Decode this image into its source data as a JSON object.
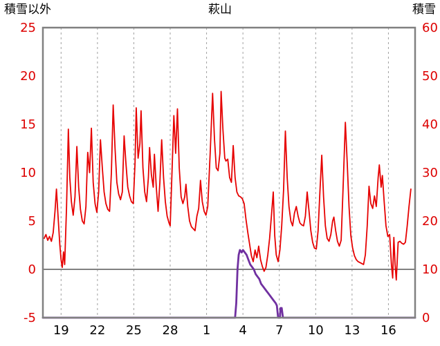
{
  "header": {
    "left_axis_title": "積雪以外",
    "title": "萩山",
    "right_axis_title": "積雪"
  },
  "chart_data": {
    "type": "line",
    "title": "萩山",
    "left_axis": {
      "label": "積雪以外",
      "min": -5,
      "max": 25,
      "ticks": [
        -5,
        0,
        5,
        10,
        15,
        20,
        25
      ]
    },
    "right_axis": {
      "label": "積雪",
      "min": 0,
      "max": 60,
      "ticks": [
        0,
        10,
        20,
        30,
        40,
        50,
        60
      ]
    },
    "x_axis": {
      "min": 17.5,
      "max": 48.2,
      "tick_positions": [
        19,
        22,
        25,
        28,
        31,
        34,
        37,
        40,
        43,
        46
      ],
      "tick_labels": [
        "19",
        "22",
        "25",
        "28",
        "1",
        "4",
        "7",
        "10",
        "13",
        "16"
      ],
      "grid": "dashed-vertical"
    },
    "zero_line_left_value": 0,
    "legend": "none",
    "colors": {
      "red_series": "#e60000",
      "purple_series": "#7030a0",
      "grid": "#a0a0a0",
      "border": "#808080",
      "zero_line": "#808080",
      "y_tick_label": "#dd0000",
      "x_tick_label": "#000000",
      "text": "#000000"
    },
    "series": [
      {
        "name": "積雪以外",
        "axis": "left",
        "color_key": "red_series",
        "stroke_width": 1.8,
        "points": [
          [
            17.6,
            3.2
          ],
          [
            17.75,
            3.6
          ],
          [
            17.9,
            3.0
          ],
          [
            18.05,
            3.4
          ],
          [
            18.2,
            2.9
          ],
          [
            18.35,
            3.8
          ],
          [
            18.5,
            6.0
          ],
          [
            18.62,
            8.3
          ],
          [
            18.75,
            5.5
          ],
          [
            18.9,
            2.5
          ],
          [
            19.0,
            1.0
          ],
          [
            19.1,
            0.2
          ],
          [
            19.2,
            1.8
          ],
          [
            19.3,
            0.5
          ],
          [
            19.45,
            6.5
          ],
          [
            19.6,
            14.5
          ],
          [
            19.72,
            9.5
          ],
          [
            19.85,
            7.0
          ],
          [
            20.0,
            5.6
          ],
          [
            20.15,
            7.5
          ],
          [
            20.3,
            12.7
          ],
          [
            20.45,
            8.5
          ],
          [
            20.6,
            6.2
          ],
          [
            20.75,
            5.0
          ],
          [
            20.9,
            4.7
          ],
          [
            21.05,
            6.5
          ],
          [
            21.2,
            12.1
          ],
          [
            21.35,
            10.0
          ],
          [
            21.5,
            14.6
          ],
          [
            21.65,
            9.0
          ],
          [
            21.8,
            6.8
          ],
          [
            21.95,
            5.9
          ],
          [
            22.1,
            8.0
          ],
          [
            22.25,
            13.4
          ],
          [
            22.4,
            10.5
          ],
          [
            22.55,
            8.0
          ],
          [
            22.7,
            6.8
          ],
          [
            22.85,
            6.2
          ],
          [
            23.0,
            6.0
          ],
          [
            23.15,
            10.0
          ],
          [
            23.3,
            17.0
          ],
          [
            23.45,
            12.5
          ],
          [
            23.6,
            9.0
          ],
          [
            23.75,
            7.8
          ],
          [
            23.9,
            7.2
          ],
          [
            24.05,
            8.0
          ],
          [
            24.2,
            13.8
          ],
          [
            24.35,
            11.0
          ],
          [
            24.5,
            8.5
          ],
          [
            24.65,
            7.6
          ],
          [
            24.8,
            7.0
          ],
          [
            24.95,
            6.8
          ],
          [
            25.1,
            11.0
          ],
          [
            25.2,
            16.7
          ],
          [
            25.35,
            11.5
          ],
          [
            25.5,
            13.0
          ],
          [
            25.6,
            16.4
          ],
          [
            25.75,
            10.5
          ],
          [
            25.9,
            8.0
          ],
          [
            26.05,
            7.0
          ],
          [
            26.2,
            9.5
          ],
          [
            26.3,
            12.6
          ],
          [
            26.45,
            9.8
          ],
          [
            26.6,
            8.5
          ],
          [
            26.7,
            11.9
          ],
          [
            26.85,
            8.5
          ],
          [
            27.0,
            6.0
          ],
          [
            27.15,
            9.0
          ],
          [
            27.3,
            13.4
          ],
          [
            27.45,
            9.5
          ],
          [
            27.6,
            7.0
          ],
          [
            27.75,
            5.5
          ],
          [
            27.9,
            4.8
          ],
          [
            28.0,
            4.5
          ],
          [
            28.15,
            10.0
          ],
          [
            28.3,
            15.9
          ],
          [
            28.45,
            12.0
          ],
          [
            28.6,
            16.6
          ],
          [
            28.75,
            10.5
          ],
          [
            28.9,
            7.5
          ],
          [
            29.05,
            6.8
          ],
          [
            29.2,
            7.5
          ],
          [
            29.3,
            8.8
          ],
          [
            29.45,
            6.5
          ],
          [
            29.6,
            5.0
          ],
          [
            29.75,
            4.4
          ],
          [
            29.9,
            4.2
          ],
          [
            30.05,
            4.0
          ],
          [
            30.2,
            5.5
          ],
          [
            30.35,
            6.3
          ],
          [
            30.5,
            9.2
          ],
          [
            30.65,
            7.0
          ],
          [
            30.8,
            6.0
          ],
          [
            30.95,
            5.6
          ],
          [
            31.1,
            6.5
          ],
          [
            31.3,
            12.0
          ],
          [
            31.5,
            18.2
          ],
          [
            31.65,
            13.5
          ],
          [
            31.8,
            10.5
          ],
          [
            31.95,
            10.2
          ],
          [
            32.1,
            12.0
          ],
          [
            32.2,
            18.4
          ],
          [
            32.35,
            14.5
          ],
          [
            32.5,
            11.5
          ],
          [
            32.6,
            11.2
          ],
          [
            32.75,
            11.4
          ],
          [
            32.9,
            9.5
          ],
          [
            33.05,
            9.0
          ],
          [
            33.2,
            12.8
          ],
          [
            33.35,
            9.5
          ],
          [
            33.5,
            8.0
          ],
          [
            33.65,
            7.6
          ],
          [
            33.8,
            7.5
          ],
          [
            33.95,
            7.3
          ],
          [
            34.1,
            6.8
          ],
          [
            34.25,
            5.2
          ],
          [
            34.4,
            3.8
          ],
          [
            34.55,
            2.6
          ],
          [
            34.7,
            1.4
          ],
          [
            34.85,
            0.8
          ],
          [
            35.0,
            2.0
          ],
          [
            35.15,
            1.2
          ],
          [
            35.3,
            2.4
          ],
          [
            35.45,
            1.0
          ],
          [
            35.6,
            0.3
          ],
          [
            35.75,
            -0.2
          ],
          [
            35.9,
            0.2
          ],
          [
            36.05,
            1.5
          ],
          [
            36.2,
            3.2
          ],
          [
            36.35,
            5.5
          ],
          [
            36.5,
            8.0
          ],
          [
            36.62,
            3.5
          ],
          [
            36.75,
            1.5
          ],
          [
            36.9,
            0.8
          ],
          [
            37.05,
            2.0
          ],
          [
            37.2,
            4.5
          ],
          [
            37.35,
            8.2
          ],
          [
            37.5,
            14.3
          ],
          [
            37.65,
            9.5
          ],
          [
            37.8,
            6.5
          ],
          [
            37.95,
            5.0
          ],
          [
            38.1,
            4.5
          ],
          [
            38.25,
            5.8
          ],
          [
            38.4,
            6.5
          ],
          [
            38.55,
            5.5
          ],
          [
            38.7,
            4.8
          ],
          [
            38.85,
            4.6
          ],
          [
            39.0,
            4.5
          ],
          [
            39.15,
            5.5
          ],
          [
            39.3,
            8.0
          ],
          [
            39.45,
            6.0
          ],
          [
            39.6,
            4.0
          ],
          [
            39.75,
            2.8
          ],
          [
            39.9,
            2.2
          ],
          [
            40.05,
            2.1
          ],
          [
            40.2,
            4.0
          ],
          [
            40.35,
            8.0
          ],
          [
            40.5,
            11.8
          ],
          [
            40.65,
            7.5
          ],
          [
            40.8,
            4.5
          ],
          [
            40.95,
            3.2
          ],
          [
            41.1,
            2.9
          ],
          [
            41.25,
            3.6
          ],
          [
            41.4,
            5.0
          ],
          [
            41.5,
            5.4
          ],
          [
            41.65,
            4.0
          ],
          [
            41.8,
            2.9
          ],
          [
            41.95,
            2.4
          ],
          [
            42.1,
            3.0
          ],
          [
            42.25,
            8.0
          ],
          [
            42.45,
            15.2
          ],
          [
            42.6,
            11.0
          ],
          [
            42.75,
            6.5
          ],
          [
            42.9,
            3.5
          ],
          [
            43.05,
            2.2
          ],
          [
            43.2,
            1.4
          ],
          [
            43.35,
            1.0
          ],
          [
            43.5,
            0.8
          ],
          [
            43.65,
            0.7
          ],
          [
            43.8,
            0.6
          ],
          [
            43.95,
            0.5
          ],
          [
            44.1,
            1.5
          ],
          [
            44.25,
            4.5
          ],
          [
            44.4,
            8.6
          ],
          [
            44.55,
            6.8
          ],
          [
            44.7,
            6.3
          ],
          [
            44.85,
            7.6
          ],
          [
            45.0,
            6.5
          ],
          [
            45.15,
            9.5
          ],
          [
            45.25,
            10.8
          ],
          [
            45.4,
            8.5
          ],
          [
            45.5,
            9.7
          ],
          [
            45.65,
            7.0
          ],
          [
            45.8,
            4.5
          ],
          [
            45.95,
            3.4
          ],
          [
            46.1,
            3.6
          ],
          [
            46.25,
            0.5
          ],
          [
            46.35,
            -0.9
          ],
          [
            46.45,
            3.3
          ],
          [
            46.55,
            0.5
          ],
          [
            46.65,
            -1.1
          ],
          [
            46.8,
            2.8
          ],
          [
            46.95,
            2.9
          ],
          [
            47.1,
            2.7
          ],
          [
            47.25,
            2.6
          ],
          [
            47.4,
            2.8
          ],
          [
            47.55,
            4.5
          ],
          [
            47.7,
            6.5
          ],
          [
            47.85,
            8.3
          ]
        ]
      },
      {
        "name": "積雪",
        "axis": "right",
        "color_key": "purple_series",
        "stroke_width": 2.8,
        "points": [
          [
            17.5,
            0
          ],
          [
            33.35,
            0
          ],
          [
            33.45,
            3
          ],
          [
            33.55,
            10
          ],
          [
            33.65,
            13
          ],
          [
            33.75,
            14
          ],
          [
            33.9,
            13.5
          ],
          [
            34.0,
            14
          ],
          [
            34.15,
            13.5
          ],
          [
            34.3,
            13
          ],
          [
            34.45,
            12
          ],
          [
            34.6,
            11
          ],
          [
            34.75,
            10.5
          ],
          [
            34.9,
            10
          ],
          [
            35.05,
            9
          ],
          [
            35.2,
            8.5
          ],
          [
            35.35,
            8
          ],
          [
            35.5,
            7
          ],
          [
            35.65,
            6.5
          ],
          [
            35.8,
            6
          ],
          [
            35.95,
            5.5
          ],
          [
            36.1,
            5
          ],
          [
            36.25,
            4.5
          ],
          [
            36.4,
            4
          ],
          [
            36.55,
            3.5
          ],
          [
            36.7,
            3
          ],
          [
            36.8,
            2.5
          ],
          [
            36.9,
            0
          ],
          [
            37.05,
            0
          ],
          [
            37.1,
            2
          ],
          [
            37.2,
            2
          ],
          [
            37.3,
            0
          ],
          [
            48.2,
            0
          ]
        ]
      }
    ]
  }
}
